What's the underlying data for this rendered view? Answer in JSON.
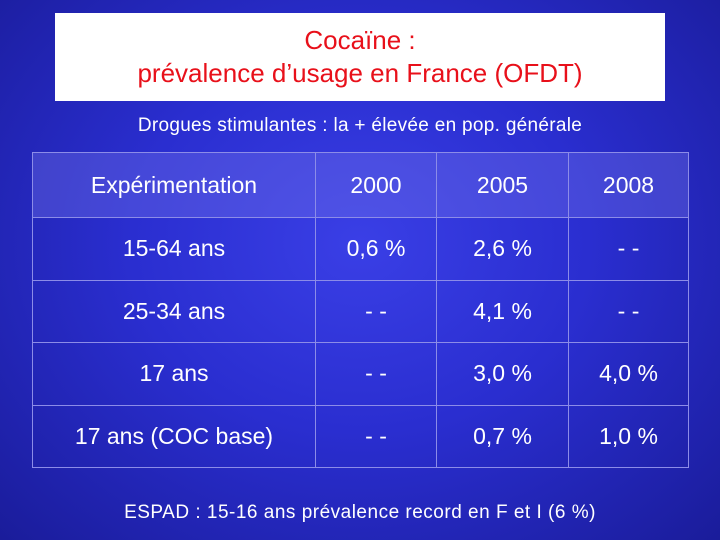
{
  "title": {
    "line1": "Cocaïne :",
    "line2": "prévalence d’usage en France (OFDT)"
  },
  "subtitle": "Drogues stimulantes : la + élevée en pop. générale",
  "table": {
    "headers": [
      "Expérimentation",
      "2000",
      "2005",
      "2008"
    ],
    "rows": [
      [
        "15-64 ans",
        "0,6 %",
        "2,6 %",
        "- -"
      ],
      [
        "25-34 ans",
        "- -",
        "4,1 %",
        "- -"
      ],
      [
        "17 ans",
        "- -",
        "3,0 %",
        "4,0 %"
      ],
      [
        "17 ans (COC base)",
        "- -",
        "0,7 %",
        "1,0 %"
      ]
    ]
  },
  "footer": "ESPAD : 15-16 ans prévalence record en F et I (6 %)",
  "colors": {
    "background": "#2a2ed0",
    "title_text": "#e8101a",
    "body_text": "#ffffff",
    "grid_lines": "#8c8ce8"
  }
}
